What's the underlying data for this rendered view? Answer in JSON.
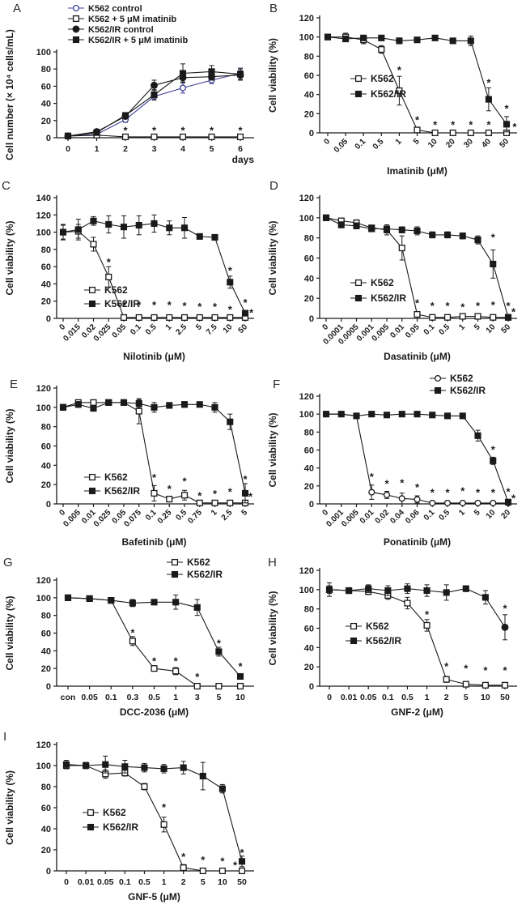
{
  "figure": {
    "description": "Dose-response growth and viability curves for K562 and imatinib-resistant K562/IR cells",
    "colors": {
      "line_black": "#1a1a1a",
      "k562_control_blue": "#3d3d96",
      "asterisk_gray": "#72727e",
      "background": "#ffffff"
    },
    "significance_symbol": "*"
  },
  "chart_data": [
    {
      "type": "line",
      "panel_label": "A",
      "xlabel": "days",
      "ylabel": "Cell number (× 10⁴ cells/mL)",
      "ylim": [
        0,
        100
      ],
      "ytick_step": 20,
      "categories": [
        "0",
        "1",
        "2",
        "3",
        "4",
        "5",
        "6"
      ],
      "rotate_xticks": false,
      "xlabel_align": "right",
      "legend_position": "above-plot",
      "series": [
        {
          "name": "K562 control",
          "marker": "circle-open",
          "color": "#3d3d96",
          "values": [
            2,
            4,
            21,
            48,
            58,
            67,
            75
          ],
          "errors": [
            1,
            1,
            3,
            4,
            6,
            4,
            5
          ]
        },
        {
          "name": "K562 + 5 μM imatinib",
          "marker": "square-open",
          "color": "#1a1a1a",
          "values": [
            2,
            3,
            1,
            1,
            1,
            1,
            1
          ],
          "errors": [
            0,
            1,
            0,
            0,
            0,
            0,
            0
          ]
        },
        {
          "name": "K562/IR control",
          "marker": "circle-filled",
          "color": "#1a1a1a",
          "values": [
            2,
            7,
            25,
            61,
            70,
            71,
            73
          ],
          "errors": [
            1,
            2,
            3,
            6,
            5,
            4,
            5
          ]
        },
        {
          "name": "K562/IR + 5 μM imatinib",
          "marker": "square-filled",
          "color": "#1a1a1a",
          "values": [
            2,
            6,
            26,
            50,
            75,
            77,
            74
          ],
          "errors": [
            1,
            2,
            3,
            6,
            11,
            7,
            7
          ]
        }
      ],
      "significance_marks": [
        {
          "i": 2,
          "y": 8
        },
        {
          "i": 3,
          "y": 8
        },
        {
          "i": 4,
          "y": 8
        },
        {
          "i": 5,
          "y": 8
        },
        {
          "i": 6,
          "y": 8
        }
      ]
    },
    {
      "type": "line",
      "panel_label": "B",
      "xlabel": "Imatinib (μM)",
      "ylabel": "Cell viability (%)",
      "ylim": [
        0,
        120
      ],
      "ytick_step": 20,
      "categories": [
        "0",
        "0.05",
        "0.1",
        "0.5",
        "1",
        "5",
        "10",
        "20",
        "30",
        "40",
        "50"
      ],
      "rotate_xticks": true,
      "legend_position": "inside-left",
      "series": [
        {
          "name": "K562",
          "marker": "square-open",
          "color": "#1a1a1a",
          "values": [
            100,
            100,
            97,
            87,
            44,
            3,
            0,
            0,
            0,
            0,
            0
          ],
          "errors": [
            2,
            4,
            4,
            4,
            15,
            3,
            0,
            0,
            0,
            0,
            0
          ]
        },
        {
          "name": "K562/IR",
          "marker": "square-filled",
          "color": "#1a1a1a",
          "values": [
            100,
            98,
            99,
            99,
            96,
            97,
            99,
            96,
            96,
            35,
            9
          ],
          "errors": [
            2,
            3,
            2,
            2,
            3,
            2,
            2,
            2,
            5,
            12,
            8
          ]
        }
      ],
      "significance_marks": [
        {
          "i": 4,
          "y": 65
        },
        {
          "i": 5,
          "y": 13
        },
        {
          "i": 6,
          "y": 8
        },
        {
          "i": 7,
          "y": 8
        },
        {
          "i": 8,
          "y": 8
        },
        {
          "i": 9,
          "y": 52
        },
        {
          "i": 9,
          "y": 8
        },
        {
          "i": 10,
          "y": 25
        },
        {
          "i": 10.45,
          "y": 6
        }
      ]
    },
    {
      "type": "line",
      "panel_label": "C",
      "xlabel": "Nilotinib (μM)",
      "ylabel": "Cell viability (%)",
      "ylim": [
        0,
        140
      ],
      "ytick_step": 20,
      "categories": [
        "0",
        "0.015",
        "0.02",
        "0.025",
        "0.05",
        "0.1",
        "0.5",
        "1",
        "2.5",
        "5",
        "7.5",
        "10",
        "50"
      ],
      "rotate_xticks": true,
      "legend_position": "inside-left",
      "series": [
        {
          "name": "K562",
          "marker": "square-open",
          "color": "#1a1a1a",
          "values": [
            100,
            101,
            86,
            48,
            1,
            1,
            1,
            1,
            1,
            1,
            1,
            1,
            1
          ],
          "errors": [
            8,
            8,
            8,
            12,
            0,
            0,
            0,
            0,
            0,
            0,
            0,
            0,
            0
          ]
        },
        {
          "name": "K562/IR",
          "marker": "square-filled",
          "color": "#1a1a1a",
          "values": [
            100,
            103,
            113,
            109,
            106,
            108,
            110,
            105,
            105,
            95,
            94,
            42,
            6
          ],
          "errors": [
            9,
            12,
            5,
            10,
            13,
            11,
            10,
            8,
            12,
            2,
            3,
            7,
            3
          ]
        }
      ],
      "significance_marks": [
        {
          "i": 3,
          "y": 65
        },
        {
          "i": 4,
          "y": 15
        },
        {
          "i": 5,
          "y": 15
        },
        {
          "i": 6,
          "y": 15
        },
        {
          "i": 7,
          "y": 15
        },
        {
          "i": 8,
          "y": 14
        },
        {
          "i": 9,
          "y": 13
        },
        {
          "i": 10,
          "y": 13
        },
        {
          "i": 11,
          "y": 55
        },
        {
          "i": 11,
          "y": 10
        },
        {
          "i": 12,
          "y": 18
        },
        {
          "i": 12.4,
          "y": 6
        }
      ]
    },
    {
      "type": "line",
      "panel_label": "D",
      "xlabel": "Dasatinib (μM)",
      "ylabel": "Cell viability (%)",
      "ylim": [
        0,
        120
      ],
      "ytick_step": 20,
      "categories": [
        "0",
        "0.0001",
        "0.0005",
        "0.001",
        "0.005",
        "0.01",
        "0.05",
        "0.1",
        "0.5",
        "1",
        "5",
        "10",
        "50"
      ],
      "rotate_xticks": true,
      "legend_position": "inside-left",
      "series": [
        {
          "name": "K562",
          "marker": "square-open",
          "color": "#1a1a1a",
          "values": [
            100,
            97,
            95,
            90,
            88,
            70,
            4,
            1,
            1,
            2,
            2,
            1,
            1
          ],
          "errors": [
            2,
            2,
            3,
            2,
            5,
            12,
            2,
            0,
            0,
            0,
            0,
            0,
            0
          ]
        },
        {
          "name": "K562/IR",
          "marker": "square-filled",
          "color": "#1a1a1a",
          "values": [
            100,
            93,
            92,
            89,
            89,
            88,
            87,
            83,
            83,
            82,
            78,
            54,
            1
          ],
          "errors": [
            2,
            3,
            3,
            2,
            4,
            3,
            4,
            3,
            3,
            3,
            4,
            14,
            2
          ]
        }
      ],
      "significance_marks": [
        {
          "i": 6,
          "y": 15
        },
        {
          "i": 7,
          "y": 12
        },
        {
          "i": 8,
          "y": 12
        },
        {
          "i": 9,
          "y": 11
        },
        {
          "i": 10,
          "y": 12
        },
        {
          "i": 11,
          "y": 80
        },
        {
          "i": 11,
          "y": 13
        },
        {
          "i": 12,
          "y": 12
        },
        {
          "i": 12.35,
          "y": 6
        }
      ]
    },
    {
      "type": "line",
      "panel_label": "E",
      "xlabel": "Bafetinib (μM)",
      "ylabel": "Cell viability (%)",
      "ylim": [
        0,
        120
      ],
      "ytick_step": 20,
      "categories": [
        "0",
        "0.005",
        "0.01",
        "0.025",
        "0.05",
        "0.075",
        "0.1",
        "0.25",
        "0.5",
        "0.75",
        "1",
        "2.5",
        "5"
      ],
      "rotate_xticks": true,
      "legend_position": "inside-left",
      "series": [
        {
          "name": "K562",
          "marker": "square-open",
          "color": "#1a1a1a",
          "values": [
            100,
            105,
            105,
            105,
            105,
            96,
            11,
            5,
            9,
            1,
            1,
            1,
            1
          ],
          "errors": [
            2,
            2,
            2,
            2,
            2,
            13,
            8,
            3,
            5,
            0,
            0,
            0,
            0
          ]
        },
        {
          "name": "K562/IR",
          "marker": "square-filled",
          "color": "#1a1a1a",
          "values": [
            100,
            103,
            99,
            105,
            105,
            104,
            100,
            102,
            103,
            103,
            100,
            85,
            11
          ],
          "errors": [
            3,
            3,
            3,
            2,
            2,
            4,
            5,
            3,
            3,
            2,
            5,
            8,
            10
          ]
        }
      ],
      "significance_marks": [
        {
          "i": 6,
          "y": 27
        },
        {
          "i": 7,
          "y": 15
        },
        {
          "i": 8,
          "y": 23
        },
        {
          "i": 9,
          "y": 8
        },
        {
          "i": 10,
          "y": 10
        },
        {
          "i": 11,
          "y": 12
        },
        {
          "i": 12,
          "y": 25
        },
        {
          "i": 12.35,
          "y": 7
        }
      ]
    },
    {
      "type": "line",
      "panel_label": "F",
      "xlabel": "Ponatinib (μM)",
      "ylabel": "Cell viability (%)",
      "ylim": [
        0,
        120
      ],
      "ytick_step": 20,
      "categories": [
        "0",
        "0.001",
        "0.005",
        "0.01",
        "0.02",
        "0.04",
        "0.06",
        "0.1",
        "0.5",
        "1",
        "5",
        "10",
        "20"
      ],
      "rotate_xticks": true,
      "legend_position": "top-right",
      "series": [
        {
          "name": "K562",
          "marker": "circle-open",
          "color": "#1a1a1a",
          "values": [
            100,
            100,
            98,
            13,
            10,
            6,
            5,
            1,
            1,
            1,
            1,
            1,
            1
          ],
          "errors": [
            1,
            1,
            2,
            8,
            4,
            6,
            4,
            0,
            0,
            0,
            0,
            0,
            0
          ]
        },
        {
          "name": "K562/IR",
          "marker": "square-filled",
          "color": "#1a1a1a",
          "values": [
            100,
            100,
            98,
            100,
            99,
            100,
            100,
            99,
            98,
            98,
            76,
            48,
            2
          ],
          "errors": [
            2,
            1,
            2,
            2,
            2,
            2,
            2,
            2,
            2,
            2,
            6,
            4,
            2
          ]
        }
      ],
      "significance_marks": [
        {
          "i": 3,
          "y": 30
        },
        {
          "i": 4,
          "y": 22
        },
        {
          "i": 5,
          "y": 23
        },
        {
          "i": 6,
          "y": 18
        },
        {
          "i": 7,
          "y": 12
        },
        {
          "i": 8,
          "y": 12
        },
        {
          "i": 9,
          "y": 14
        },
        {
          "i": 10,
          "y": 12
        },
        {
          "i": 11,
          "y": 60
        },
        {
          "i": 11,
          "y": 12
        },
        {
          "i": 12,
          "y": 13
        },
        {
          "i": 12.35,
          "y": 6
        }
      ]
    },
    {
      "type": "line",
      "panel_label": "G",
      "xlabel": "DCC-2036 (μM)",
      "ylabel": "Cell viability (%)",
      "ylim": [
        0,
        120
      ],
      "ytick_step": 20,
      "categories": [
        "con",
        "0.05",
        "0.1",
        "0.3",
        "0.5",
        "1",
        "3",
        "5",
        "10"
      ],
      "rotate_xticks": false,
      "legend_position": "top-right",
      "series": [
        {
          "name": "K562",
          "marker": "square-open",
          "color": "#1a1a1a",
          "values": [
            100,
            99,
            97,
            51,
            20,
            17,
            0,
            0,
            0
          ],
          "errors": [
            1,
            2,
            3,
            5,
            3,
            4,
            0,
            0,
            0
          ]
        },
        {
          "name": "K562/IR",
          "marker": "square-filled",
          "color": "#1a1a1a",
          "values": [
            100,
            99,
            97,
            94,
            95,
            95,
            89,
            39,
            11
          ],
          "errors": [
            1,
            3,
            3,
            4,
            3,
            8,
            9,
            5,
            3
          ]
        }
      ],
      "significance_marks": [
        {
          "i": 3,
          "y": 60
        },
        {
          "i": 4,
          "y": 28
        },
        {
          "i": 5,
          "y": 28
        },
        {
          "i": 6,
          "y": 10
        },
        {
          "i": 7,
          "y": 48
        },
        {
          "i": 8,
          "y": 22
        }
      ]
    },
    {
      "type": "line",
      "panel_label": "H",
      "xlabel": "GNF-2 (μM)",
      "ylabel": "Cell viability (%)",
      "ylim": [
        0,
        120
      ],
      "ytick_step": 20,
      "categories": [
        "0",
        "0.01",
        "0.05",
        "0.1",
        "0.5",
        "1",
        "2",
        "5",
        "10",
        "50"
      ],
      "rotate_xticks": false,
      "legend_position": "inside-left",
      "series": [
        {
          "name": "K562",
          "marker": "square-open",
          "color": "#1a1a1a",
          "values": [
            100,
            99,
            98,
            94,
            86,
            63,
            7,
            2,
            1,
            1
          ],
          "errors": [
            4,
            3,
            3,
            4,
            6,
            6,
            3,
            2,
            0,
            0
          ]
        },
        {
          "name": "K562/IR",
          "marker": "square-filled",
          "color": "#1a1a1a",
          "values": [
            100,
            99,
            101,
            99,
            101,
            99,
            97,
            101,
            92,
            61
          ],
          "errors": [
            7,
            3,
            4,
            5,
            5,
            6,
            8,
            3,
            7,
            13
          ],
          "marker_overrides": {
            "9": "circle-filled"
          }
        }
      ],
      "significance_marks": [
        {
          "i": 5,
          "y": 74
        },
        {
          "i": 6,
          "y": 20
        },
        {
          "i": 7,
          "y": 18
        },
        {
          "i": 8,
          "y": 16
        },
        {
          "i": 9,
          "y": 80
        },
        {
          "i": 9,
          "y": 16
        }
      ]
    },
    {
      "type": "line",
      "panel_label": "I",
      "xlabel": "GNF-5 (μM)",
      "ylabel": "Cell viability (%)",
      "ylim": [
        0,
        120
      ],
      "ytick_step": 20,
      "categories": [
        "0",
        "0.01",
        "0.05",
        "0.1",
        "0.5",
        "1",
        "2",
        "5",
        "10",
        "50"
      ],
      "rotate_xticks": false,
      "legend_position": "inside-left",
      "series": [
        {
          "name": "K562",
          "marker": "square-open",
          "color": "#1a1a1a",
          "values": [
            100,
            100,
            92,
            93,
            80,
            44,
            3,
            0,
            0,
            0
          ],
          "errors": [
            3,
            2,
            4,
            3,
            3,
            7,
            3,
            0,
            0,
            0
          ]
        },
        {
          "name": "K562/IR",
          "marker": "square-filled",
          "color": "#1a1a1a",
          "values": [
            101,
            100,
            101,
            99,
            98,
            97,
            98,
            90,
            78,
            9
          ],
          "errors": [
            4,
            3,
            8,
            6,
            4,
            4,
            6,
            13,
            4,
            5
          ]
        }
      ],
      "significance_marks": [
        {
          "i": 5,
          "y": 60
        },
        {
          "i": 6,
          "y": 13
        },
        {
          "i": 7,
          "y": 10
        },
        {
          "i": 8,
          "y": 9
        },
        {
          "i": 9,
          "y": 17
        },
        {
          "i": 8.65,
          "y": 5
        }
      ]
    }
  ]
}
